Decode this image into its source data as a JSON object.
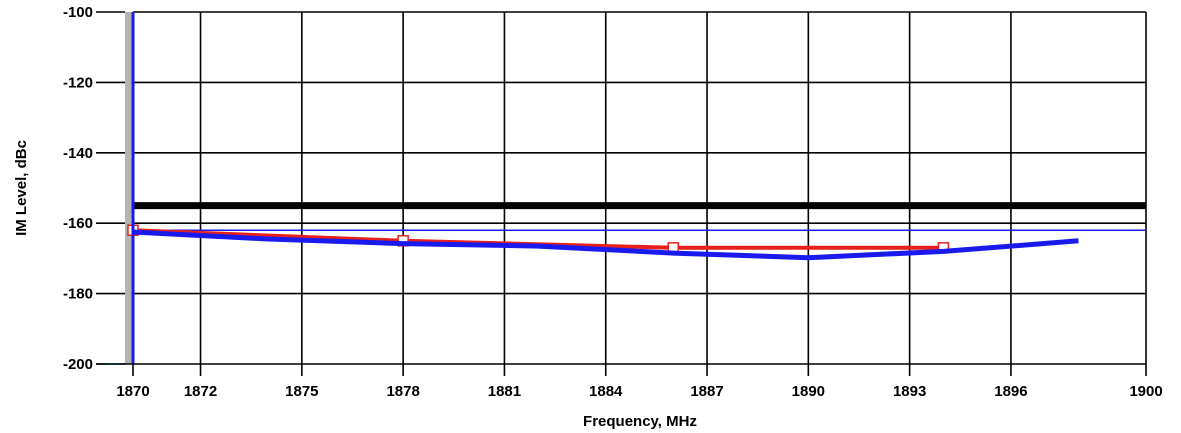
{
  "chart_data": {
    "type": "line",
    "xlabel": "Frequency, MHz",
    "ylabel": "IM Level, dBc",
    "xlim": [
      1870,
      1900
    ],
    "ylim": [
      -200,
      -100
    ],
    "x_ticks": [
      "1870",
      "1872",
      "1875",
      "1878",
      "1881",
      "1884",
      "1887",
      "1890",
      "1893",
      "1896",
      "1900"
    ],
    "y_ticks": [
      "-100",
      "-120",
      "-140",
      "-160",
      "-180",
      "-200"
    ],
    "grid": true,
    "series": [
      {
        "color": "#e8201c",
        "marker": "square",
        "x": [
          1870,
          1878,
          1886,
          1894
        ],
        "y": [
          -162,
          -165,
          -167,
          -167
        ]
      },
      {
        "color": "#1a1aee",
        "marker": "none",
        "x": [
          1870,
          1874,
          1878,
          1882,
          1886,
          1890,
          1894,
          1898
        ],
        "y": [
          -162.5,
          -164.5,
          -165.8,
          -166.5,
          -168.5,
          -169.8,
          -168,
          -165
        ]
      }
    ],
    "reference_lines": [
      {
        "y": -155,
        "color": "#000000",
        "style": "thick"
      },
      {
        "y": -160,
        "color": "#000000",
        "style": "thin"
      },
      {
        "y": -162,
        "color": "#1a1aee",
        "style": "thin"
      }
    ]
  }
}
